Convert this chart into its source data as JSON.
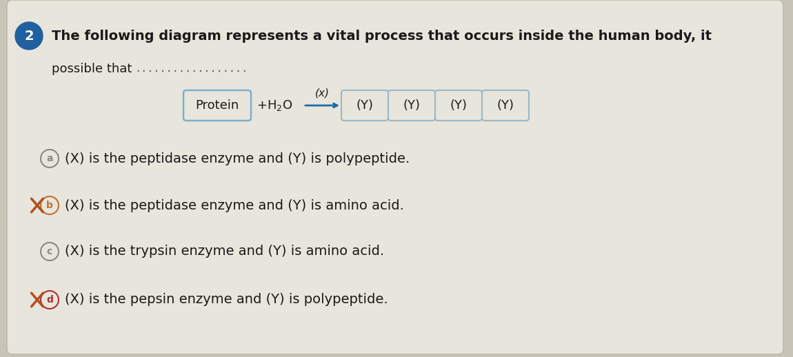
{
  "bg_color": "#c8c4b8",
  "card_color": "#e8e5dc",
  "title_text": "The following diagram represents a vital process that occurs inside the human body, it",
  "possible_text": "possible that ",
  "dots": "..................",
  "question_num": "2",
  "circle_color": "#2060a0",
  "diagram_protein": "Protein",
  "diagram_water": "+ H₂O",
  "diagram_x": "(x)",
  "diagram_y": "(Y)",
  "arrow_color": "#1a6aaa",
  "protein_box_color": "#7ab0d0",
  "y_box_color": "#9ab8c8",
  "options": [
    {
      "label": "a",
      "text": "(X) is the peptidase enzyme and (Y) is polypeptide.",
      "crossed": false,
      "label_color": "#888888"
    },
    {
      "label": "b",
      "text": "(X) is the peptidase enzyme and (Y) is amino acid.",
      "crossed": true,
      "label_color": "#c07030"
    },
    {
      "label": "c",
      "text": "(X) is the trypsin enzyme and (Y) is amino acid.",
      "crossed": false,
      "label_color": "#888888"
    },
    {
      "label": "d",
      "text": "(X) is the pepsin enzyme and (Y) is polypeptide.",
      "crossed": true,
      "label_color": "#b03030"
    }
  ],
  "font_size_title": 14,
  "font_size_options": 14,
  "font_size_diagram": 13
}
